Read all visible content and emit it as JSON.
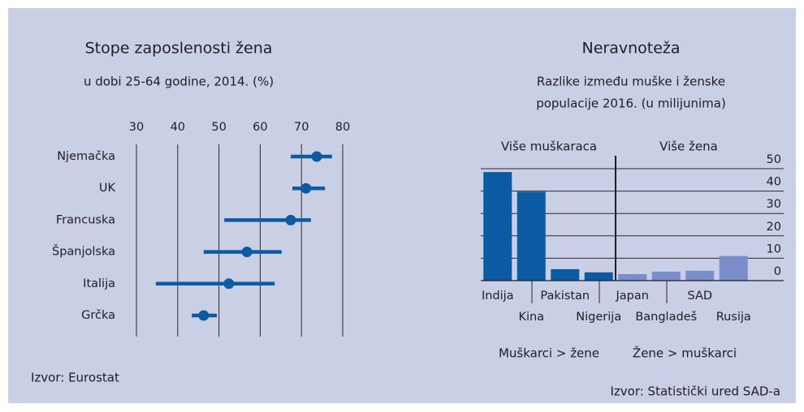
{
  "chart_data": [
    {
      "type": "dot_range",
      "title": "Stope zaposlenosti žena",
      "subtitle": "u dobi 25-64 godine, 2014. (%)",
      "categories": [
        "Njemačka",
        "UK",
        "Francuska",
        "Španjolska",
        "Italija",
        "Grčka"
      ],
      "values": [
        73.7,
        71.1,
        67.4,
        56.8,
        52.4,
        46.3
      ],
      "low": [
        67.4,
        67.8,
        51.3,
        46.3,
        34.7,
        43.4
      ],
      "high": [
        77.4,
        75.7,
        72.3,
        65.2,
        63.5,
        49.5
      ],
      "color": "#0b5aa2",
      "xlim": [
        30,
        80
      ],
      "xticks": [
        30,
        40,
        50,
        60,
        70,
        80
      ],
      "grid": true,
      "source": "Izvor: Eurostat"
    },
    {
      "type": "bar",
      "title": "Neravnoteža",
      "subtitle": [
        "Razlike između muške i ženske",
        "populacije 2016. (u milijunima)"
      ],
      "annotations": [
        "Više muškaraca",
        "Više žena"
      ],
      "categories": [
        "Indija",
        "Kina",
        "Pakistan",
        "Nigerija",
        "Japan",
        "Bangladeš",
        "SAD",
        "Rusija"
      ],
      "series": [
        {
          "name": "Muškarci > žene",
          "color": "#0b5aa2",
          "values": [
            48.5,
            39.7,
            5.1,
            3.7,
            null,
            null,
            null,
            null
          ]
        },
        {
          "name": "Žene > muškarci",
          "color": "#7a8ecb",
          "values": [
            null,
            null,
            null,
            null,
            2.9,
            4.0,
            4.4,
            11
          ]
        }
      ],
      "ylim": [
        0,
        50
      ],
      "yticks": [
        0,
        10,
        20,
        30,
        40,
        50
      ],
      "grid": true,
      "source": "Izvor: Statistički ured SAD-a"
    }
  ]
}
